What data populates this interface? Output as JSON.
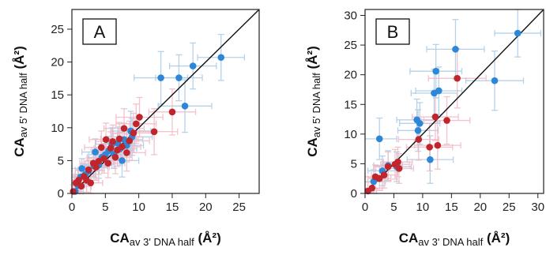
{
  "colors": {
    "blue": "#2e86d6",
    "red": "#c0242c",
    "blue_err": "#a9cbe6",
    "red_err": "#f1b8c4",
    "diagonal": "#111111",
    "axis": "#222222"
  },
  "chart_data": [
    {
      "type": "scatter",
      "panel_label": "A",
      "xlim": [
        0,
        28
      ],
      "ylim": [
        0,
        28
      ],
      "xticks": [
        "0",
        "5",
        "10",
        "15",
        "20",
        "25"
      ],
      "yticks": [
        "0",
        "5",
        "10",
        "15",
        "20",
        "25"
      ],
      "xlabel": {
        "main": "CA",
        "sub": "av",
        "rest": " 3' DNA half",
        "unit": " (Å²)"
      },
      "ylabel": {
        "main": "CA",
        "sub": "av 5' DNA half",
        "unit": " (Å²)"
      },
      "grid": false,
      "reference_line": "y = x",
      "series": [
        {
          "color": "blue",
          "points": [
            {
              "x": 0.5,
              "y": 0.3,
              "ex": 1.2,
              "ey": 1.0
            },
            {
              "x": 0.9,
              "y": 1.2,
              "ex": 1.0,
              "ey": 1.2
            },
            {
              "x": 1.3,
              "y": 2.5,
              "ex": 1.5,
              "ey": 1.5
            },
            {
              "x": 1.5,
              "y": 3.8,
              "ex": 1.8,
              "ey": 1.5
            },
            {
              "x": 2.0,
              "y": 2.9,
              "ex": 1.5,
              "ey": 1.5
            },
            {
              "x": 2.5,
              "y": 3.4,
              "ex": 1.6,
              "ey": 1.6
            },
            {
              "x": 3.3,
              "y": 4.2,
              "ex": 2.0,
              "ey": 1.8
            },
            {
              "x": 3.5,
              "y": 6.3,
              "ex": 2.0,
              "ey": 2.0
            },
            {
              "x": 4.0,
              "y": 4.3,
              "ex": 2.0,
              "ey": 2.0
            },
            {
              "x": 4.5,
              "y": 5.5,
              "ex": 2.2,
              "ey": 2.0
            },
            {
              "x": 5.0,
              "y": 5.9,
              "ex": 2.5,
              "ey": 2.0
            },
            {
              "x": 5.5,
              "y": 6.5,
              "ex": 2.5,
              "ey": 2.2
            },
            {
              "x": 6.0,
              "y": 7.5,
              "ex": 2.5,
              "ey": 2.5
            },
            {
              "x": 6.3,
              "y": 6.0,
              "ex": 2.5,
              "ey": 2.2
            },
            {
              "x": 6.9,
              "y": 7.6,
              "ex": 2.5,
              "ey": 2.5
            },
            {
              "x": 7.2,
              "y": 6.8,
              "ex": 2.5,
              "ey": 2.5
            },
            {
              "x": 7.5,
              "y": 5.0,
              "ex": 2.5,
              "ey": 2.5
            },
            {
              "x": 7.8,
              "y": 8.2,
              "ex": 2.8,
              "ey": 2.5
            },
            {
              "x": 8.2,
              "y": 7.3,
              "ex": 2.5,
              "ey": 2.5
            },
            {
              "x": 8.8,
              "y": 9.5,
              "ex": 3.0,
              "ey": 3.0
            },
            {
              "x": 9.0,
              "y": 8.6,
              "ex": 3.0,
              "ey": 2.8
            },
            {
              "x": 13.3,
              "y": 17.6,
              "ex": 4.0,
              "ey": 4.0
            },
            {
              "x": 16.0,
              "y": 17.6,
              "ex": 3.5,
              "ey": 3.5
            },
            {
              "x": 16.9,
              "y": 13.3,
              "ex": 4.0,
              "ey": 4.0
            },
            {
              "x": 18.1,
              "y": 19.4,
              "ex": 3.5,
              "ey": 3.5
            },
            {
              "x": 22.3,
              "y": 20.7,
              "ex": 3.5,
              "ey": 3.5
            }
          ]
        },
        {
          "color": "red",
          "points": [
            {
              "x": 0.2,
              "y": 0.3,
              "ex": 1.0,
              "ey": 1.0
            },
            {
              "x": 0.6,
              "y": 1.6,
              "ex": 1.2,
              "ey": 1.2
            },
            {
              "x": 1.0,
              "y": 2.0,
              "ex": 1.5,
              "ey": 1.5
            },
            {
              "x": 1.4,
              "y": 1.1,
              "ex": 1.5,
              "ey": 1.5
            },
            {
              "x": 1.8,
              "y": 2.6,
              "ex": 1.5,
              "ey": 1.5
            },
            {
              "x": 2.2,
              "y": 2.0,
              "ex": 1.8,
              "ey": 1.8
            },
            {
              "x": 2.5,
              "y": 3.6,
              "ex": 2.0,
              "ey": 1.8
            },
            {
              "x": 2.8,
              "y": 1.6,
              "ex": 1.8,
              "ey": 1.8
            },
            {
              "x": 3.2,
              "y": 4.6,
              "ex": 2.0,
              "ey": 2.0
            },
            {
              "x": 3.6,
              "y": 4.0,
              "ex": 2.0,
              "ey": 2.0
            },
            {
              "x": 4.0,
              "y": 4.9,
              "ex": 2.2,
              "ey": 2.0
            },
            {
              "x": 4.4,
              "y": 7.0,
              "ex": 2.5,
              "ey": 2.5
            },
            {
              "x": 4.8,
              "y": 5.3,
              "ex": 2.5,
              "ey": 2.2
            },
            {
              "x": 5.1,
              "y": 8.2,
              "ex": 2.5,
              "ey": 2.5
            },
            {
              "x": 5.4,
              "y": 4.6,
              "ex": 2.5,
              "ey": 2.2
            },
            {
              "x": 5.8,
              "y": 6.9,
              "ex": 2.5,
              "ey": 2.5
            },
            {
              "x": 6.1,
              "y": 7.9,
              "ex": 2.5,
              "ey": 2.5
            },
            {
              "x": 6.5,
              "y": 5.5,
              "ex": 2.5,
              "ey": 2.5
            },
            {
              "x": 6.8,
              "y": 6.6,
              "ex": 2.5,
              "ey": 2.5
            },
            {
              "x": 7.1,
              "y": 8.3,
              "ex": 2.8,
              "ey": 2.5
            },
            {
              "x": 7.5,
              "y": 7.1,
              "ex": 2.8,
              "ey": 2.5
            },
            {
              "x": 7.8,
              "y": 9.9,
              "ex": 3.0,
              "ey": 3.0
            },
            {
              "x": 8.2,
              "y": 6.2,
              "ex": 2.8,
              "ey": 2.8
            },
            {
              "x": 8.6,
              "y": 8.0,
              "ex": 3.0,
              "ey": 3.0
            },
            {
              "x": 9.2,
              "y": 9.2,
              "ex": 3.0,
              "ey": 3.0
            },
            {
              "x": 9.6,
              "y": 10.6,
              "ex": 3.0,
              "ey": 3.0
            },
            {
              "x": 10.1,
              "y": 11.6,
              "ex": 3.5,
              "ey": 3.0
            },
            {
              "x": 12.3,
              "y": 9.4,
              "ex": 3.5,
              "ey": 3.5
            },
            {
              "x": 15.0,
              "y": 12.4,
              "ex": 3.5,
              "ey": 3.5
            }
          ]
        }
      ]
    },
    {
      "type": "scatter",
      "panel_label": "B",
      "xlim": [
        0,
        31
      ],
      "ylim": [
        0,
        31
      ],
      "xticks": [
        "0",
        "5",
        "10",
        "15",
        "20",
        "25",
        "30"
      ],
      "yticks": [
        "0",
        "5",
        "10",
        "15",
        "20",
        "25",
        "30"
      ],
      "xlabel": {
        "main": "CA",
        "sub": "av",
        "rest": " 3' DNA half",
        "unit": " (Å²)"
      },
      "ylabel": {
        "main": "CA",
        "sub": "av 5' DNA half",
        "unit": " (Å²)"
      },
      "grid": false,
      "reference_line": "y = x",
      "series": [
        {
          "color": "blue",
          "points": [
            {
              "x": 1.5,
              "y": 2.0,
              "ex": 2.0,
              "ey": 2.0
            },
            {
              "x": 2.5,
              "y": 9.2,
              "ex": 3.0,
              "ey": 3.5
            },
            {
              "x": 3.0,
              "y": 3.8,
              "ex": 2.5,
              "ey": 2.5
            },
            {
              "x": 4.0,
              "y": 4.7,
              "ex": 2.5,
              "ey": 2.5
            },
            {
              "x": 5.5,
              "y": 4.5,
              "ex": 2.5,
              "ey": 2.5
            },
            {
              "x": 9.0,
              "y": 12.4,
              "ex": 3.5,
              "ey": 3.5
            },
            {
              "x": 9.2,
              "y": 10.6,
              "ex": 3.5,
              "ey": 3.5
            },
            {
              "x": 9.5,
              "y": 11.8,
              "ex": 3.5,
              "ey": 3.5
            },
            {
              "x": 11.3,
              "y": 5.7,
              "ex": 4.0,
              "ey": 4.0
            },
            {
              "x": 12.0,
              "y": 16.9,
              "ex": 4.0,
              "ey": 4.0
            },
            {
              "x": 12.3,
              "y": 20.6,
              "ex": 4.5,
              "ey": 4.5
            },
            {
              "x": 12.8,
              "y": 17.3,
              "ex": 4.0,
              "ey": 4.0
            },
            {
              "x": 15.7,
              "y": 24.3,
              "ex": 5.0,
              "ey": 5.0
            },
            {
              "x": 22.5,
              "y": 19.0,
              "ex": 5.0,
              "ey": 5.0
            },
            {
              "x": 26.5,
              "y": 27.0,
              "ex": 4.0,
              "ey": 4.0
            }
          ]
        },
        {
          "color": "red",
          "points": [
            {
              "x": 0.5,
              "y": 0.4,
              "ex": 1.5,
              "ey": 1.5
            },
            {
              "x": 1.2,
              "y": 0.9,
              "ex": 1.8,
              "ey": 1.8
            },
            {
              "x": 1.8,
              "y": 2.8,
              "ex": 2.0,
              "ey": 2.0
            },
            {
              "x": 2.5,
              "y": 2.5,
              "ex": 2.0,
              "ey": 2.0
            },
            {
              "x": 3.3,
              "y": 3.1,
              "ex": 2.2,
              "ey": 2.2
            },
            {
              "x": 4.0,
              "y": 4.5,
              "ex": 2.5,
              "ey": 2.5
            },
            {
              "x": 5.2,
              "y": 4.9,
              "ex": 2.5,
              "ey": 2.5
            },
            {
              "x": 5.7,
              "y": 5.3,
              "ex": 2.5,
              "ey": 2.5
            },
            {
              "x": 5.9,
              "y": 4.2,
              "ex": 2.5,
              "ey": 2.5
            },
            {
              "x": 9.3,
              "y": 9.1,
              "ex": 3.5,
              "ey": 3.5
            },
            {
              "x": 11.2,
              "y": 7.8,
              "ex": 4.0,
              "ey": 4.0
            },
            {
              "x": 12.2,
              "y": 12.9,
              "ex": 4.0,
              "ey": 4.0
            },
            {
              "x": 12.6,
              "y": 8.1,
              "ex": 4.0,
              "ey": 4.0
            },
            {
              "x": 14.2,
              "y": 12.3,
              "ex": 4.0,
              "ey": 4.0
            },
            {
              "x": 16.0,
              "y": 19.4,
              "ex": 5.0,
              "ey": 5.0
            }
          ]
        }
      ]
    }
  ]
}
